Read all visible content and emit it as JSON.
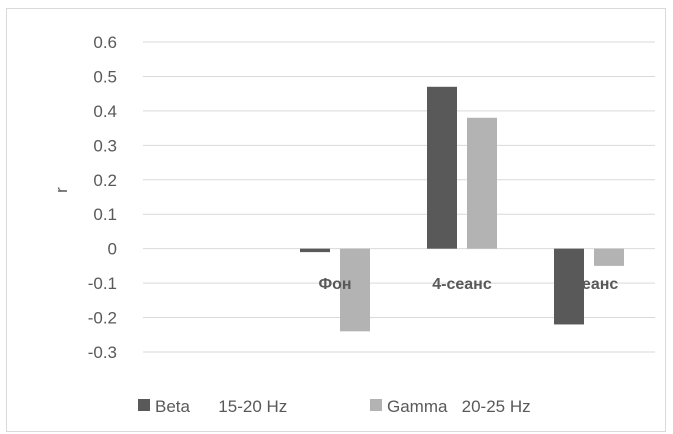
{
  "chart_data": {
    "type": "bar",
    "title": "",
    "xlabel": "",
    "ylabel": "r",
    "ylim": [
      -0.3,
      0.6
    ],
    "yticks": [
      0.6,
      0.5,
      0.4,
      0.3,
      0.2,
      0.1,
      0,
      -0.1,
      -0.2,
      -0.3
    ],
    "grid": true,
    "legend_position": "bottom",
    "categories": [
      "Фон",
      "4-сеанс",
      "7 сеанс"
    ],
    "series": [
      {
        "name": "Beta      15-20 Hz",
        "values": [
          -0.01,
          0.47,
          -0.22
        ],
        "color": "#595959"
      },
      {
        "name": "Gamma   20-25 Hz",
        "values": [
          -0.24,
          0.38,
          -0.05
        ],
        "color": "#b3b3b3"
      }
    ]
  }
}
